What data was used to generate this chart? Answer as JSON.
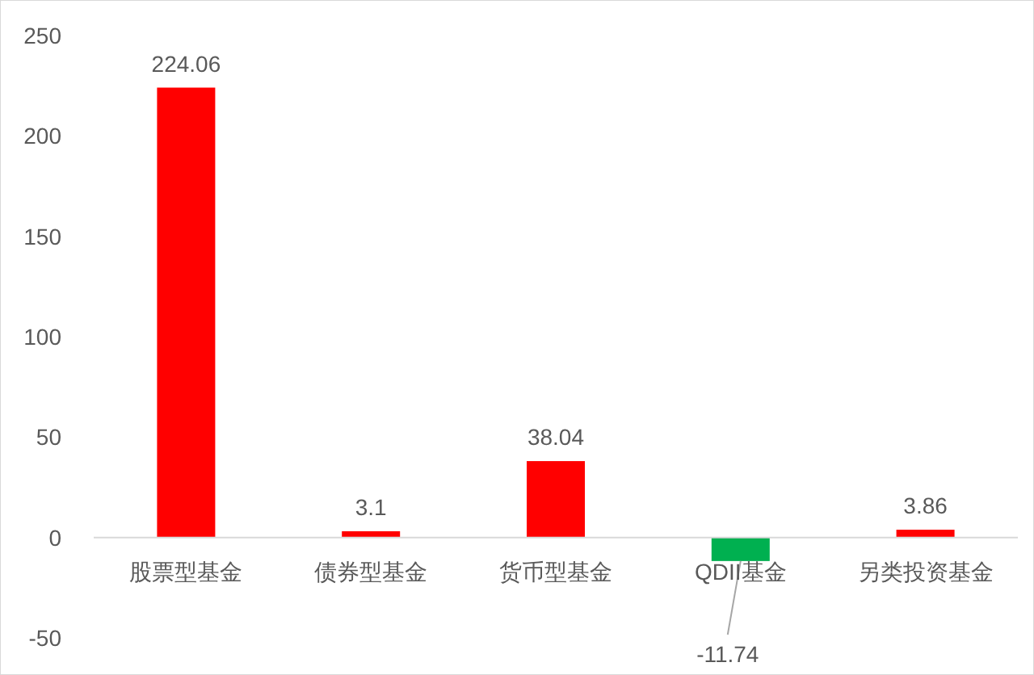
{
  "chart_data": {
    "type": "bar",
    "categories": [
      "股票型基金",
      "债券型基金",
      "货币型基金",
      "QDII基金",
      "另类投资基金"
    ],
    "values": [
      224.06,
      3.1,
      38.04,
      -11.74,
      3.86
    ],
    "colors": [
      "#ff0000",
      "#ff0000",
      "#ff0000",
      "#00b050",
      "#ff0000"
    ],
    "ylim": [
      -50,
      250
    ],
    "yticks": [
      -50,
      0,
      50,
      100,
      150,
      200,
      250
    ],
    "value_labels": [
      "224.06",
      "3.1",
      "38.04",
      null,
      "3.86"
    ],
    "annotations": [
      {
        "text": "-11.74",
        "x": "QDII基金",
        "y": -11.74
      }
    ],
    "grid": false
  }
}
